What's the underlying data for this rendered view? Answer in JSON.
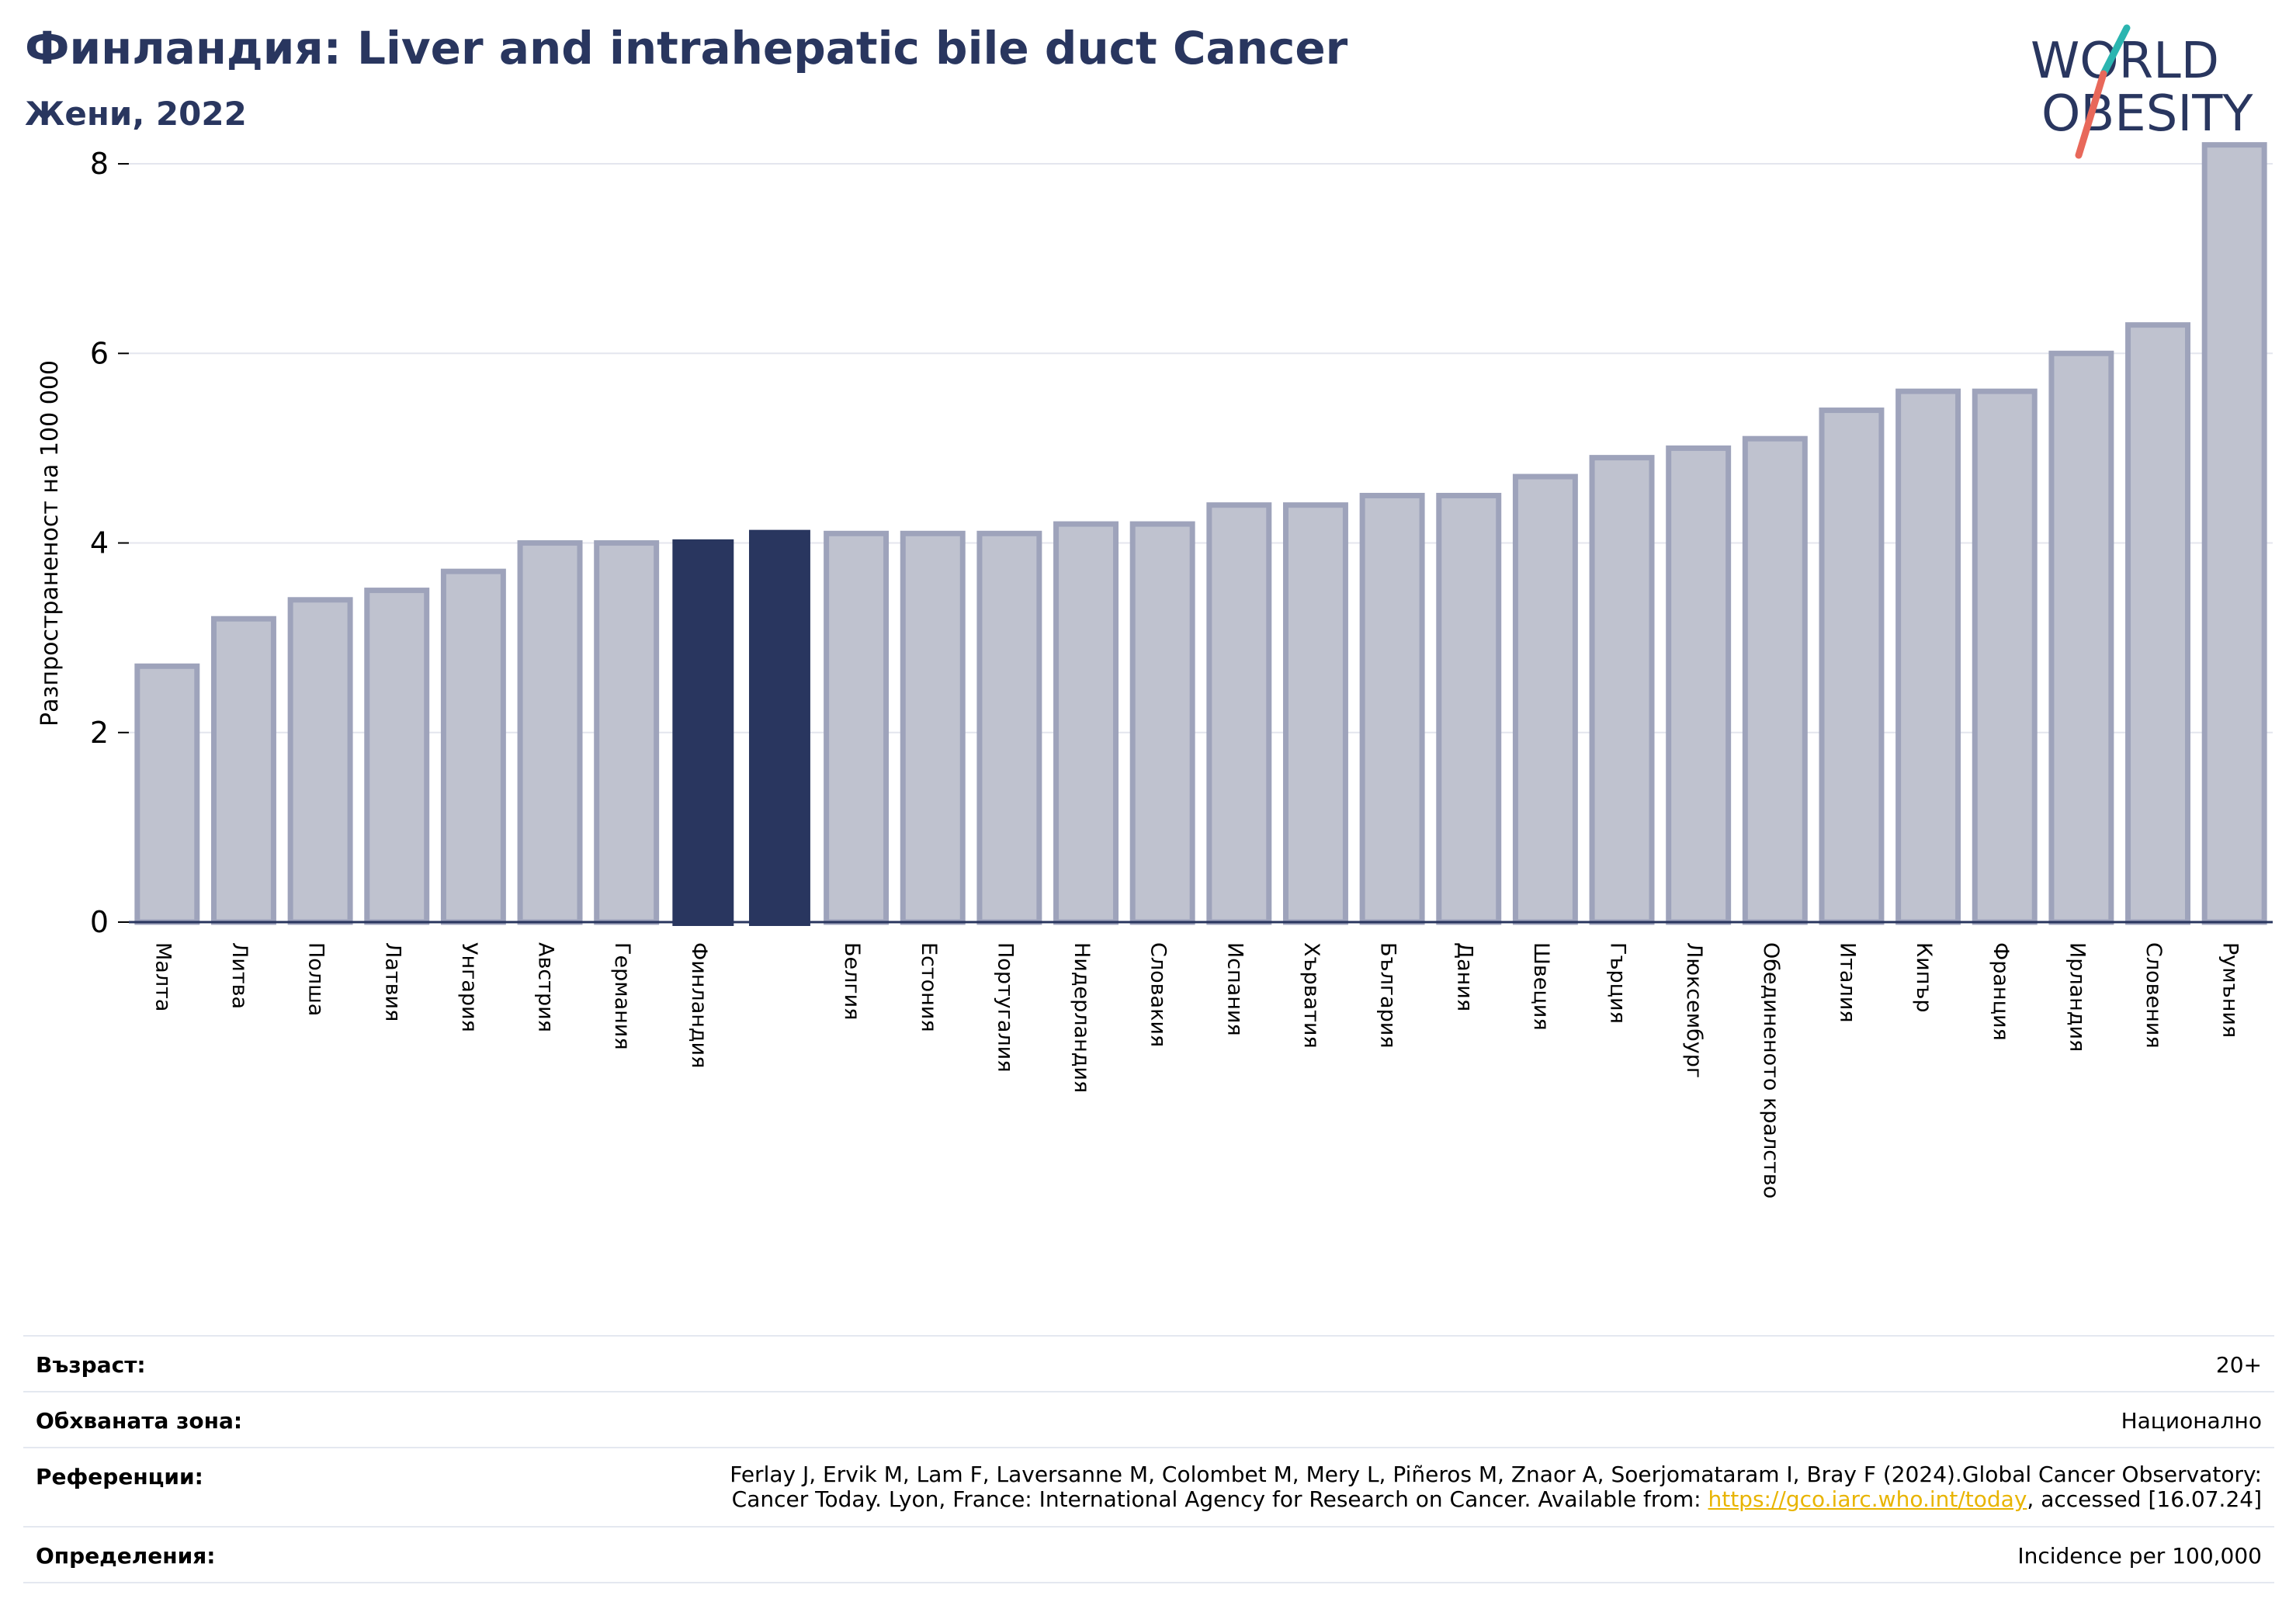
{
  "header": {
    "title": "Финландия: Liver and intrahepatic bile duct Cancer",
    "subtitle": "Жени, 2022"
  },
  "logo": {
    "line1": "WORLD",
    "line2": "OBESITY"
  },
  "colors": {
    "highlight": "#29365f",
    "bar_fill": "#bfc2cf",
    "bar_stroke": "#9ea3bb",
    "grid": "#e4e6ee",
    "logo_text": "#29365f",
    "logo_teal": "#2bb5b0",
    "logo_coral": "#e8685a",
    "link": "#e8b400"
  },
  "chart_data": {
    "type": "bar",
    "title": "Финландия: Liver and intrahepatic bile duct Cancer",
    "subtitle": "Жени, 2022",
    "ylabel": "Разпространеност  на 100 000",
    "xlabel": "",
    "ylim": [
      0,
      8.5
    ],
    "yticks": [
      0,
      2,
      4,
      6,
      8
    ],
    "grid": true,
    "categories": [
      "Малта",
      "Литва",
      "Полша",
      "Латвия",
      "Унгария",
      "Австрия",
      "Германия",
      "Финландия",
      "",
      "Белгия",
      "Естония",
      "Португалия",
      "Нидерландия",
      "Словакия",
      "Испания",
      "Хърватия",
      "България",
      "Дания",
      "Швеция",
      "Гърция",
      "Люксембург",
      "Обединеното кралство",
      "Италия",
      "Кипър",
      "Франция",
      "Ирландия",
      "Словения",
      "Румъния"
    ],
    "values": [
      2.7,
      3.2,
      3.4,
      3.5,
      3.7,
      4.0,
      4.0,
      4.03,
      4.13,
      4.1,
      4.1,
      4.1,
      4.2,
      4.2,
      4.4,
      4.4,
      4.5,
      4.5,
      4.7,
      4.9,
      5.0,
      5.1,
      5.4,
      5.6,
      5.6,
      6.0,
      6.3,
      8.2
    ],
    "highlighted": [
      7,
      8
    ]
  },
  "meta": {
    "age_label": "Възраст:",
    "age_value": "20+",
    "coverage_label": "Обхваната зона:",
    "coverage_value": "Национално",
    "references_label": "Референции:",
    "references_line1": "Ferlay J, Ervik M, Lam F, Laversanne M, Colombet M, Mery L, Piñeros M, Znaor A, Soerjomataram I, Bray F (2024).Global Cancer Observatory:",
    "references_line2_pre": "Cancer Today. Lyon, France: International Agency for Research on Cancer. Available from: ",
    "references_link": "https://gco.iarc.who.int/today",
    "references_line2_post": ", accessed [16.07.24]",
    "definitions_label": "Определения:",
    "definitions_value": "Incidence per 100,000"
  }
}
